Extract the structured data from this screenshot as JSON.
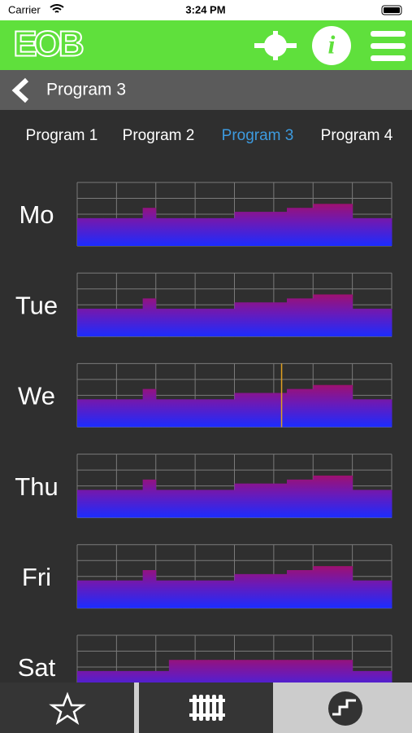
{
  "status_bar": {
    "carrier": "Carrier",
    "time": "3:24 PM"
  },
  "header": {
    "logo": "EOB"
  },
  "nav": {
    "title": "Program 3"
  },
  "tabs": {
    "items": [
      "Program 1",
      "Program 2",
      "Program 3",
      "Program 4"
    ],
    "active": 2
  },
  "schedule": {
    "xlim": [
      0,
      24
    ],
    "ylim": [
      0,
      4
    ],
    "xticks": [
      0,
      3,
      6,
      9,
      12,
      15,
      18,
      21,
      24
    ],
    "yticks": [
      0,
      1,
      2,
      3,
      4
    ],
    "days": [
      {
        "label": "Mo",
        "values": [
          1.75,
          1.75,
          1.75,
          1.75,
          1.75,
          2.4,
          1.75,
          1.75,
          1.75,
          1.75,
          1.75,
          1.75,
          2.15,
          2.15,
          2.15,
          2.15,
          2.4,
          2.4,
          2.65,
          2.65,
          2.65,
          1.75,
          1.75,
          1.75
        ]
      },
      {
        "label": "Tue",
        "values": [
          1.75,
          1.75,
          1.75,
          1.75,
          1.75,
          2.4,
          1.75,
          1.75,
          1.75,
          1.75,
          1.75,
          1.75,
          2.15,
          2.15,
          2.15,
          2.15,
          2.4,
          2.4,
          2.65,
          2.65,
          2.65,
          1.75,
          1.75,
          1.75
        ]
      },
      {
        "label": "We",
        "values": [
          1.75,
          1.75,
          1.75,
          1.75,
          1.75,
          2.4,
          1.75,
          1.75,
          1.75,
          1.75,
          1.75,
          1.75,
          2.15,
          2.15,
          2.15,
          2.15,
          2.4,
          2.4,
          2.65,
          2.65,
          2.65,
          1.75,
          1.75,
          1.75
        ],
        "now": 15.6
      },
      {
        "label": "Thu",
        "values": [
          1.75,
          1.75,
          1.75,
          1.75,
          1.75,
          2.4,
          1.75,
          1.75,
          1.75,
          1.75,
          1.75,
          1.75,
          2.15,
          2.15,
          2.15,
          2.15,
          2.4,
          2.4,
          2.65,
          2.65,
          2.65,
          1.75,
          1.75,
          1.75
        ]
      },
      {
        "label": "Fri",
        "values": [
          1.75,
          1.75,
          1.75,
          1.75,
          1.75,
          2.4,
          1.75,
          1.75,
          1.75,
          1.75,
          1.75,
          1.75,
          2.15,
          2.15,
          2.15,
          2.15,
          2.4,
          2.4,
          2.65,
          2.65,
          2.65,
          1.75,
          1.75,
          1.75
        ]
      },
      {
        "label": "Sat",
        "values": [
          1.75,
          1.75,
          1.75,
          1.75,
          1.75,
          1.75,
          1.75,
          2.45,
          2.45,
          2.45,
          2.45,
          2.45,
          2.45,
          2.45,
          2.45,
          2.45,
          2.45,
          2.45,
          2.45,
          2.45,
          2.45,
          1.75,
          1.75,
          1.75
        ]
      }
    ]
  }
}
